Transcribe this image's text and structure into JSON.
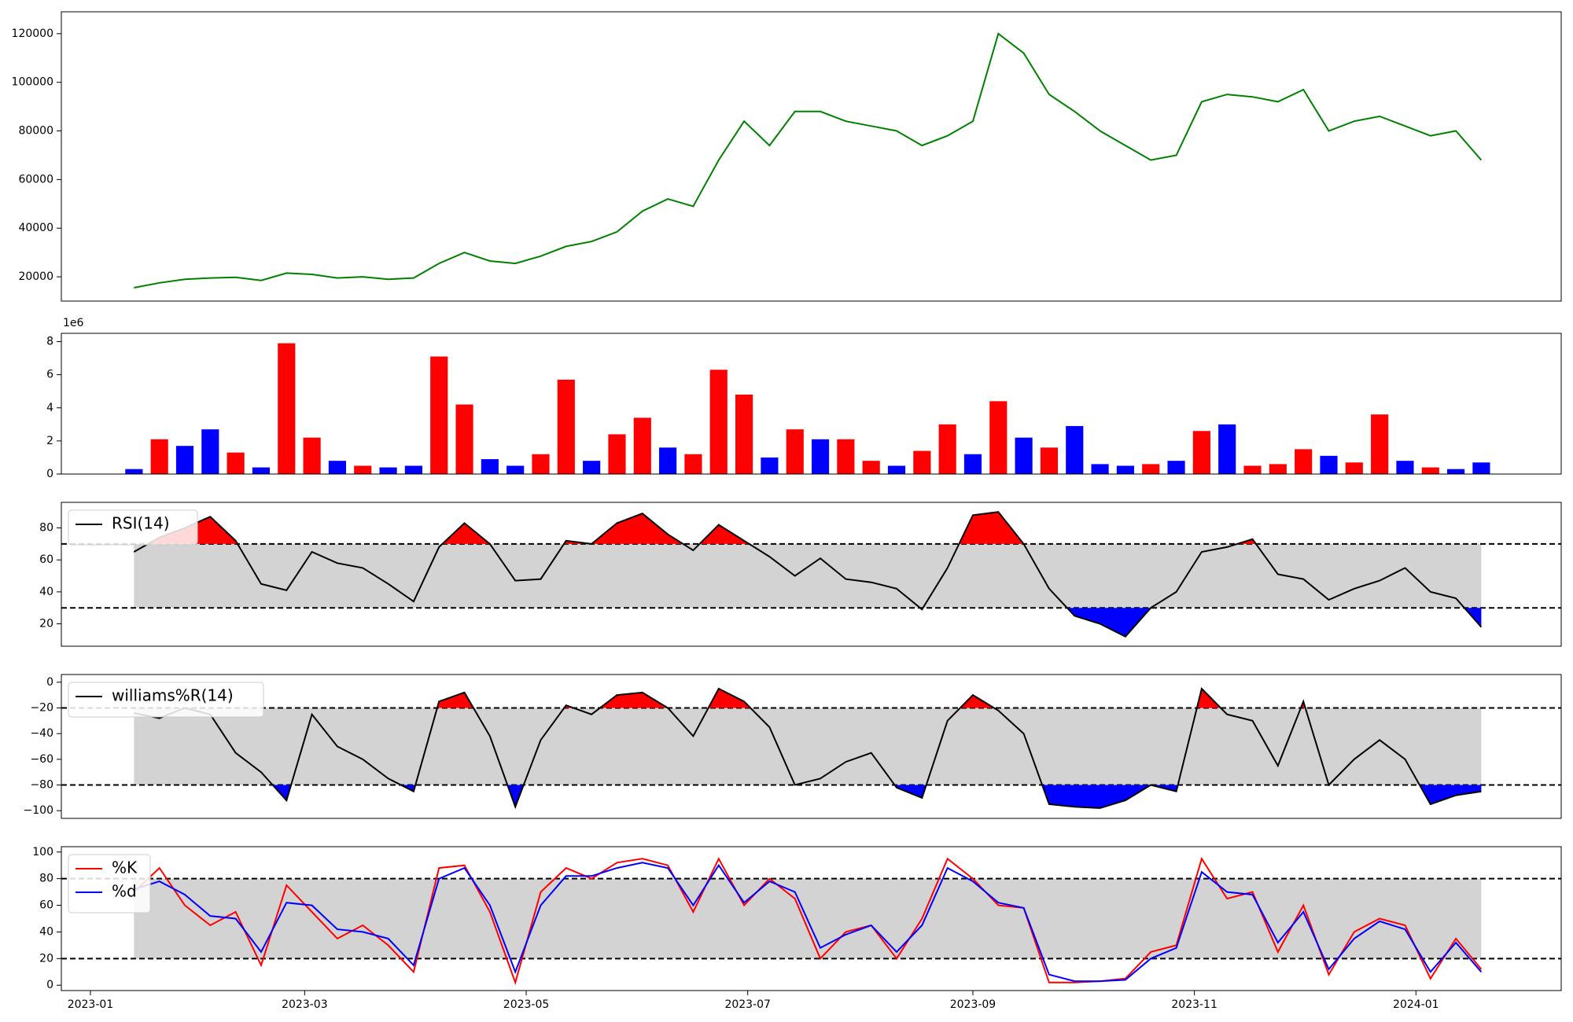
{
  "chart_data": [
    {
      "type": "line",
      "panel": "price",
      "color": "#008000",
      "ylim": [
        10000,
        129000
      ],
      "yticks": [
        "20000",
        "40000",
        "60000",
        "80000",
        "100000",
        "120000"
      ],
      "ytick_values": [
        20000,
        40000,
        60000,
        80000,
        100000,
        120000
      ],
      "x": [
        "2023-01-13",
        "2023-01-20",
        "2023-01-27",
        "2023-02-03",
        "2023-02-10",
        "2023-02-17",
        "2023-02-24",
        "2023-03-03",
        "2023-03-10",
        "2023-03-17",
        "2023-03-24",
        "2023-03-31",
        "2023-04-07",
        "2023-04-14",
        "2023-04-21",
        "2023-04-28",
        "2023-05-05",
        "2023-05-12",
        "2023-05-19",
        "2023-05-26",
        "2023-06-02",
        "2023-06-09",
        "2023-06-16",
        "2023-06-23",
        "2023-06-30",
        "2023-07-07",
        "2023-07-14",
        "2023-07-21",
        "2023-07-28",
        "2023-08-04",
        "2023-08-11",
        "2023-08-18",
        "2023-08-25",
        "2023-09-01",
        "2023-09-08",
        "2023-09-15",
        "2023-09-22",
        "2023-09-29",
        "2023-10-06",
        "2023-10-13",
        "2023-10-20",
        "2023-10-27",
        "2023-11-03",
        "2023-11-10",
        "2023-11-17",
        "2023-11-24",
        "2023-12-01",
        "2023-12-08",
        "2023-12-15",
        "2023-12-22",
        "2023-12-29",
        "2024-01-05",
        "2024-01-12",
        "2024-01-19"
      ],
      "values": [
        15500,
        17500,
        19000,
        19500,
        19800,
        18500,
        21500,
        21000,
        19500,
        20000,
        19000,
        19500,
        25500,
        30000,
        26500,
        25500,
        28500,
        32500,
        34500,
        38500,
        47000,
        52000,
        49000,
        68000,
        84000,
        74000,
        88000,
        88000,
        84000,
        82000,
        80000,
        74000,
        78000,
        84000,
        120000,
        112000,
        95000,
        88000,
        80000,
        74000,
        68000,
        70000,
        92000,
        95000,
        94000,
        92000,
        97000,
        80000,
        84000,
        86000,
        82000,
        78000,
        80000,
        68000
      ]
    },
    {
      "type": "bar",
      "panel": "volume",
      "offset_label": "1e6",
      "ylim": [
        0,
        8.5
      ],
      "yticks": [
        "0",
        "2",
        "4",
        "6",
        "8"
      ],
      "ytick_values": [
        0,
        2,
        4,
        6,
        8
      ],
      "up_color": "#ff0000",
      "down_color": "#0000ff",
      "x": [
        "2023-01-13",
        "2023-01-20",
        "2023-01-27",
        "2023-02-03",
        "2023-02-10",
        "2023-02-17",
        "2023-02-24",
        "2023-03-03",
        "2023-03-10",
        "2023-03-17",
        "2023-03-24",
        "2023-03-31",
        "2023-04-07",
        "2023-04-14",
        "2023-04-21",
        "2023-04-28",
        "2023-05-05",
        "2023-05-12",
        "2023-05-19",
        "2023-05-26",
        "2023-06-02",
        "2023-06-09",
        "2023-06-16",
        "2023-06-23",
        "2023-06-30",
        "2023-07-07",
        "2023-07-14",
        "2023-07-21",
        "2023-07-28",
        "2023-08-04",
        "2023-08-11",
        "2023-08-18",
        "2023-08-25",
        "2023-09-01",
        "2023-09-08",
        "2023-09-15",
        "2023-09-22",
        "2023-09-29",
        "2023-10-06",
        "2023-10-13",
        "2023-10-20",
        "2023-10-27",
        "2023-11-03",
        "2023-11-10",
        "2023-11-17",
        "2023-11-24",
        "2023-12-01",
        "2023-12-08",
        "2023-12-15",
        "2023-12-22",
        "2023-12-29",
        "2024-01-05",
        "2024-01-12",
        "2024-01-19"
      ],
      "values": [
        0.3,
        2.1,
        1.7,
        2.7,
        1.3,
        0.4,
        7.9,
        2.2,
        0.8,
        0.5,
        0.4,
        0.5,
        7.1,
        4.2,
        0.9,
        0.5,
        1.2,
        5.7,
        0.8,
        2.4,
        3.4,
        1.6,
        1.2,
        6.3,
        4.8,
        1.0,
        2.7,
        2.1,
        2.1,
        0.8,
        0.5,
        1.4,
        3.0,
        1.2,
        4.4,
        2.2,
        1.6,
        2.9,
        0.6,
        0.5,
        0.6,
        0.8,
        2.6,
        3.0,
        0.5,
        0.6,
        1.5,
        1.1,
        0.7,
        3.6,
        0.8,
        0.4,
        0.3,
        0.7
      ],
      "direction": [
        "down",
        "up",
        "down",
        "down",
        "up",
        "down",
        "up",
        "up",
        "down",
        "up",
        "down",
        "down",
        "up",
        "up",
        "down",
        "down",
        "up",
        "up",
        "down",
        "up",
        "up",
        "down",
        "up",
        "up",
        "up",
        "down",
        "up",
        "down",
        "up",
        "up",
        "down",
        "up",
        "up",
        "down",
        "up",
        "down",
        "up",
        "down",
        "down",
        "down",
        "up",
        "down",
        "up",
        "down",
        "up",
        "up",
        "up",
        "down",
        "up",
        "up",
        "down",
        "up",
        "down",
        "down"
      ]
    },
    {
      "type": "line",
      "panel": "rsi",
      "legend": [
        "RSI(14)"
      ],
      "ylim": [
        6,
        96
      ],
      "yticks": [
        "20",
        "40",
        "60",
        "80"
      ],
      "ytick_values": [
        20,
        40,
        60,
        80
      ],
      "upper": 70,
      "lower": 30,
      "x": [
        "2023-01-13",
        "2023-01-20",
        "2023-01-27",
        "2023-02-03",
        "2023-02-10",
        "2023-02-17",
        "2023-02-24",
        "2023-03-03",
        "2023-03-10",
        "2023-03-17",
        "2023-03-24",
        "2023-03-31",
        "2023-04-07",
        "2023-04-14",
        "2023-04-21",
        "2023-04-28",
        "2023-05-05",
        "2023-05-12",
        "2023-05-19",
        "2023-05-26",
        "2023-06-02",
        "2023-06-09",
        "2023-06-16",
        "2023-06-23",
        "2023-06-30",
        "2023-07-07",
        "2023-07-14",
        "2023-07-21",
        "2023-07-28",
        "2023-08-04",
        "2023-08-11",
        "2023-08-18",
        "2023-08-25",
        "2023-09-01",
        "2023-09-08",
        "2023-09-15",
        "2023-09-22",
        "2023-09-29",
        "2023-10-06",
        "2023-10-13",
        "2023-10-20",
        "2023-10-27",
        "2023-11-03",
        "2023-11-10",
        "2023-11-17",
        "2023-11-24",
        "2023-12-01",
        "2023-12-08",
        "2023-12-15",
        "2023-12-22",
        "2023-12-29",
        "2024-01-05",
        "2024-01-12",
        "2024-01-19"
      ],
      "values": [
        65,
        74,
        80,
        87,
        72,
        45,
        41,
        65,
        58,
        55,
        45,
        34,
        68,
        83,
        70,
        47,
        48,
        72,
        70,
        83,
        89,
        76,
        66,
        82,
        72,
        62,
        50,
        61,
        48,
        46,
        42,
        29,
        55,
        88,
        90,
        70,
        42,
        25,
        20,
        12,
        30,
        40,
        65,
        68,
        73,
        51,
        48,
        35,
        42,
        47,
        55,
        40,
        36,
        18
      ]
    },
    {
      "type": "line",
      "panel": "williams",
      "legend": [
        "williams%R(14)"
      ],
      "ylim": [
        -106,
        6
      ],
      "yticks": [
        "0",
        "−20",
        "−40",
        "−60",
        "−80",
        "−100"
      ],
      "ytick_values": [
        0,
        -20,
        -40,
        -60,
        -80,
        -100
      ],
      "upper": -20,
      "lower": -80,
      "x": [
        "2023-01-13",
        "2023-01-20",
        "2023-01-27",
        "2023-02-03",
        "2023-02-10",
        "2023-02-17",
        "2023-02-24",
        "2023-03-03",
        "2023-03-10",
        "2023-03-17",
        "2023-03-24",
        "2023-03-31",
        "2023-04-07",
        "2023-04-14",
        "2023-04-21",
        "2023-04-28",
        "2023-05-05",
        "2023-05-12",
        "2023-05-19",
        "2023-05-26",
        "2023-06-02",
        "2023-06-09",
        "2023-06-16",
        "2023-06-23",
        "2023-06-30",
        "2023-07-07",
        "2023-07-14",
        "2023-07-21",
        "2023-07-28",
        "2023-08-04",
        "2023-08-11",
        "2023-08-18",
        "2023-08-25",
        "2023-09-01",
        "2023-09-08",
        "2023-09-15",
        "2023-09-22",
        "2023-09-29",
        "2023-10-06",
        "2023-10-13",
        "2023-10-20",
        "2023-10-27",
        "2023-11-03",
        "2023-11-10",
        "2023-11-17",
        "2023-11-24",
        "2023-12-01",
        "2023-12-08",
        "2023-12-15",
        "2023-12-22",
        "2023-12-29",
        "2024-01-05",
        "2024-01-12",
        "2024-01-19"
      ],
      "values": [
        -24,
        -28,
        -20,
        -25,
        -55,
        -70,
        -92,
        -25,
        -50,
        -60,
        -75,
        -85,
        -15,
        -8,
        -42,
        -97,
        -45,
        -18,
        -25,
        -10,
        -8,
        -20,
        -42,
        -5,
        -15,
        -35,
        -80,
        -75,
        -62,
        -55,
        -82,
        -90,
        -30,
        -10,
        -22,
        -40,
        -95,
        -97,
        -98,
        -92,
        -80,
        -85,
        -5,
        -25,
        -30,
        -65,
        -15,
        -80,
        -60,
        -45,
        -60,
        -95,
        -88,
        -85
      ]
    },
    {
      "type": "line",
      "panel": "stochastic",
      "legend": [
        "%K",
        "%d"
      ],
      "ylim": [
        -4,
        104
      ],
      "yticks": [
        "0",
        "20",
        "40",
        "60",
        "80",
        "100"
      ],
      "ytick_values": [
        0,
        20,
        40,
        60,
        80,
        100
      ],
      "upper": 80,
      "lower": 20,
      "x": [
        "2023-01-13",
        "2023-01-20",
        "2023-01-27",
        "2023-02-03",
        "2023-02-10",
        "2023-02-17",
        "2023-02-24",
        "2023-03-03",
        "2023-03-10",
        "2023-03-17",
        "2023-03-24",
        "2023-03-31",
        "2023-04-07",
        "2023-04-14",
        "2023-04-21",
        "2023-04-28",
        "2023-05-05",
        "2023-05-12",
        "2023-05-19",
        "2023-05-26",
        "2023-06-02",
        "2023-06-09",
        "2023-06-16",
        "2023-06-23",
        "2023-06-30",
        "2023-07-07",
        "2023-07-14",
        "2023-07-21",
        "2023-07-28",
        "2023-08-04",
        "2023-08-11",
        "2023-08-18",
        "2023-08-25",
        "2023-09-01",
        "2023-09-08",
        "2023-09-15",
        "2023-09-22",
        "2023-09-29",
        "2023-10-06",
        "2023-10-13",
        "2023-10-20",
        "2023-10-27",
        "2023-11-03",
        "2023-11-10",
        "2023-11-17",
        "2023-11-24",
        "2023-12-01",
        "2023-12-08",
        "2023-12-15",
        "2023-12-22",
        "2023-12-29",
        "2024-01-05",
        "2024-01-12",
        "2024-01-19"
      ],
      "series": [
        {
          "name": "%K",
          "color": "#ff0000",
          "values": [
            70,
            88,
            60,
            45,
            55,
            15,
            75,
            55,
            35,
            45,
            30,
            10,
            88,
            90,
            55,
            2,
            70,
            88,
            80,
            92,
            95,
            90,
            55,
            95,
            60,
            80,
            65,
            20,
            40,
            45,
            20,
            50,
            95,
            80,
            60,
            58,
            2,
            2,
            3,
            5,
            25,
            30,
            95,
            65,
            70,
            25,
            60,
            8,
            40,
            50,
            45,
            5,
            35,
            12
          ]
        },
        {
          "name": "%d",
          "color": "#0000ff",
          "values": [
            72,
            78,
            68,
            52,
            50,
            25,
            62,
            60,
            42,
            40,
            35,
            15,
            80,
            88,
            60,
            10,
            60,
            82,
            82,
            88,
            92,
            88,
            60,
            90,
            62,
            78,
            70,
            28,
            38,
            45,
            25,
            45,
            88,
            78,
            62,
            58,
            8,
            3,
            3,
            4,
            20,
            28,
            85,
            70,
            68,
            32,
            55,
            12,
            35,
            48,
            42,
            10,
            32,
            10
          ]
        }
      ]
    }
  ],
  "x_axis": {
    "ticks": [
      "2023-01",
      "2023-03",
      "2023-05",
      "2023-07",
      "2023-09",
      "2023-11",
      "2024-01"
    ],
    "tick_dates": [
      "2023-01-01",
      "2023-03-01",
      "2023-05-01",
      "2023-07-01",
      "2023-09-01",
      "2023-11-01",
      "2024-01-01"
    ],
    "xlim": [
      "2022-12-24",
      "2024-02-10"
    ]
  },
  "colors": {
    "overbought_fill": "#ff0000",
    "oversold_fill": "#0000ff",
    "band_fill": "#d3d3d3",
    "line": "#000000"
  }
}
